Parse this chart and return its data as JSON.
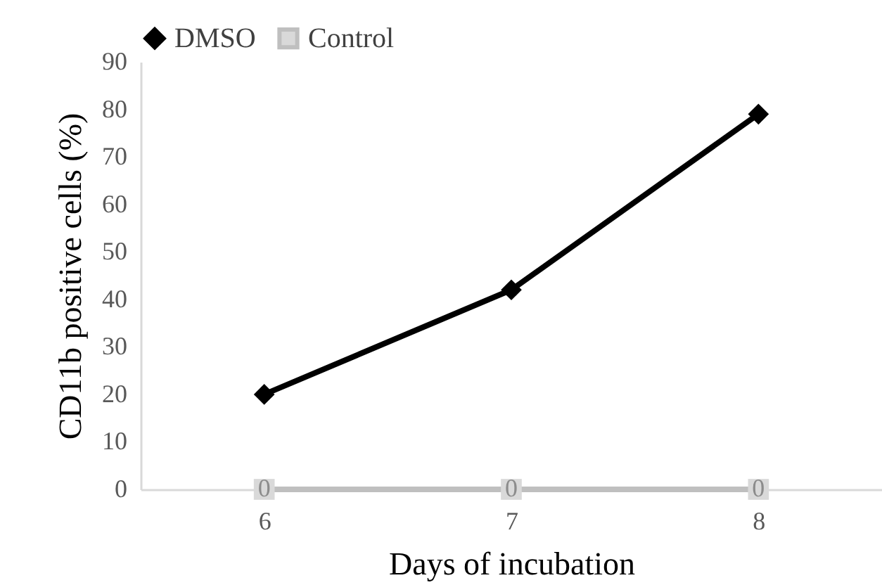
{
  "chart_data": {
    "type": "line",
    "xlabel": "Days of incubation",
    "ylabel": "CD11b positive cells (%)",
    "categories": [
      "6",
      "7",
      "8"
    ],
    "series": [
      {
        "name": "DMSO",
        "color": "#000000",
        "marker": "diamond",
        "values": [
          20,
          42,
          79
        ]
      },
      {
        "name": "Control",
        "color": "#bfbfbf",
        "marker": "square",
        "values": [
          0,
          0,
          0
        ],
        "value_labels": [
          "0",
          "0",
          "0"
        ]
      }
    ],
    "ylim": [
      0,
      90
    ],
    "yticks": [
      0,
      10,
      20,
      30,
      40,
      50,
      60,
      70,
      80,
      90
    ],
    "grid": false,
    "legend": "top"
  }
}
